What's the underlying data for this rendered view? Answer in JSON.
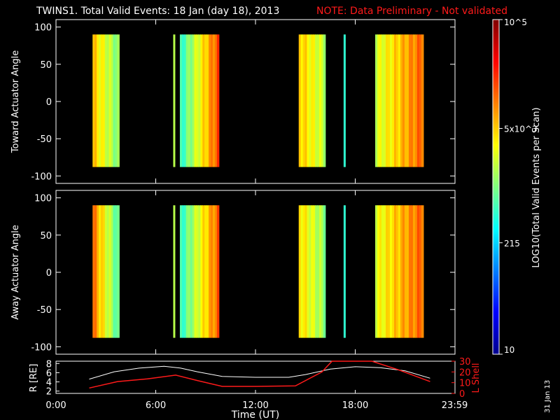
{
  "title": {
    "main": "TWINS1. Total Valid Events: 18 Jan (day  18), 2013",
    "note": "NOTE: Data Preliminary - Not validated"
  },
  "colors": {
    "background": "#000000",
    "text": "#ffffff",
    "note": "#ff1a1a",
    "r_line": "#ffffff",
    "lshell_line": "#ff1a1a"
  },
  "time_labels": [
    "0:00",
    "6:00",
    "12:00",
    "18:00",
    "23:59"
  ],
  "xlabel": "Time (UT)",
  "date_stamp": "31 Jan 13",
  "colorbar": {
    "colormap": "jet",
    "scale": "log",
    "range": [
      10,
      100000
    ],
    "tick_labels": [
      "10",
      "215",
      "5x10^3",
      "10^5"
    ],
    "label": "LOG10(Total Valid Events per Scan)"
  },
  "chart_data": [
    {
      "type": "heatmap",
      "ylabel": "Toward Actuator Angle",
      "xlim": [
        0,
        24
      ],
      "ylim": [
        -110,
        110
      ],
      "y_ticks": [
        100,
        50,
        0,
        -50,
        -100
      ],
      "angle_range": [
        -88,
        90
      ],
      "data_intervals": [
        {
          "start": 2.2,
          "end": 3.8,
          "level": [
            0.68,
            0.5
          ]
        },
        {
          "start": 7.05,
          "end": 7.15,
          "level": [
            0.52,
            0.52
          ]
        },
        {
          "start": 7.45,
          "end": 9.8,
          "level": [
            0.42,
            0.8
          ]
        },
        {
          "start": 14.6,
          "end": 16.2,
          "level": [
            0.68,
            0.56
          ]
        },
        {
          "start": 17.3,
          "end": 17.4,
          "level": [
            0.45,
            0.45
          ]
        },
        {
          "start": 19.2,
          "end": 22.1,
          "level": [
            0.58,
            0.78
          ]
        }
      ]
    },
    {
      "type": "heatmap",
      "ylabel": "Away Actuator Angle",
      "xlim": [
        0,
        24
      ],
      "ylim": [
        -110,
        110
      ],
      "y_ticks": [
        100,
        50,
        0,
        -50,
        -100
      ],
      "angle_range": [
        -88,
        90
      ],
      "data_intervals": [
        {
          "start": 2.2,
          "end": 3.8,
          "level": [
            0.76,
            0.45
          ]
        },
        {
          "start": 7.05,
          "end": 7.15,
          "level": [
            0.52,
            0.52
          ]
        },
        {
          "start": 7.45,
          "end": 9.8,
          "level": [
            0.42,
            0.78
          ]
        },
        {
          "start": 14.6,
          "end": 16.2,
          "level": [
            0.66,
            0.52
          ]
        },
        {
          "start": 17.3,
          "end": 17.4,
          "level": [
            0.45,
            0.45
          ]
        },
        {
          "start": 19.2,
          "end": 22.1,
          "level": [
            0.6,
            0.78
          ]
        }
      ]
    },
    {
      "type": "line",
      "ylabel": "R [RE]",
      "y2label": "L Shell",
      "xlim": [
        0,
        24
      ],
      "ylim": [
        1.5,
        8.5
      ],
      "y_ticks": [
        8,
        6,
        4,
        2
      ],
      "y2lim": [
        0,
        30
      ],
      "y2_ticks": [
        30,
        20,
        10,
        0
      ],
      "series": [
        {
          "axis": "left",
          "x": [
            2.0,
            3.5,
            5.0,
            6.5,
            7.5,
            8.5,
            10.0,
            12.0,
            14.0,
            15.0,
            16.5,
            18.0,
            19.5,
            21.0,
            22.5
          ],
          "values": [
            4.6,
            6.2,
            7.0,
            7.4,
            7.0,
            6.2,
            5.2,
            5.0,
            5.0,
            5.6,
            6.8,
            7.3,
            7.1,
            6.4,
            4.8
          ]
        },
        {
          "axis": "right",
          "x": [
            2.0,
            3.7,
            5.5,
            7.2,
            8.5,
            10.0,
            12.0,
            14.4,
            16.0,
            16.6,
            19.0,
            20.6,
            22.5
          ],
          "values": [
            5.0,
            11.0,
            13.5,
            17.0,
            12.0,
            6.5,
            6.5,
            7.0,
            20.0,
            32.0,
            32.0,
            22.0,
            11.0
          ]
        }
      ]
    }
  ]
}
